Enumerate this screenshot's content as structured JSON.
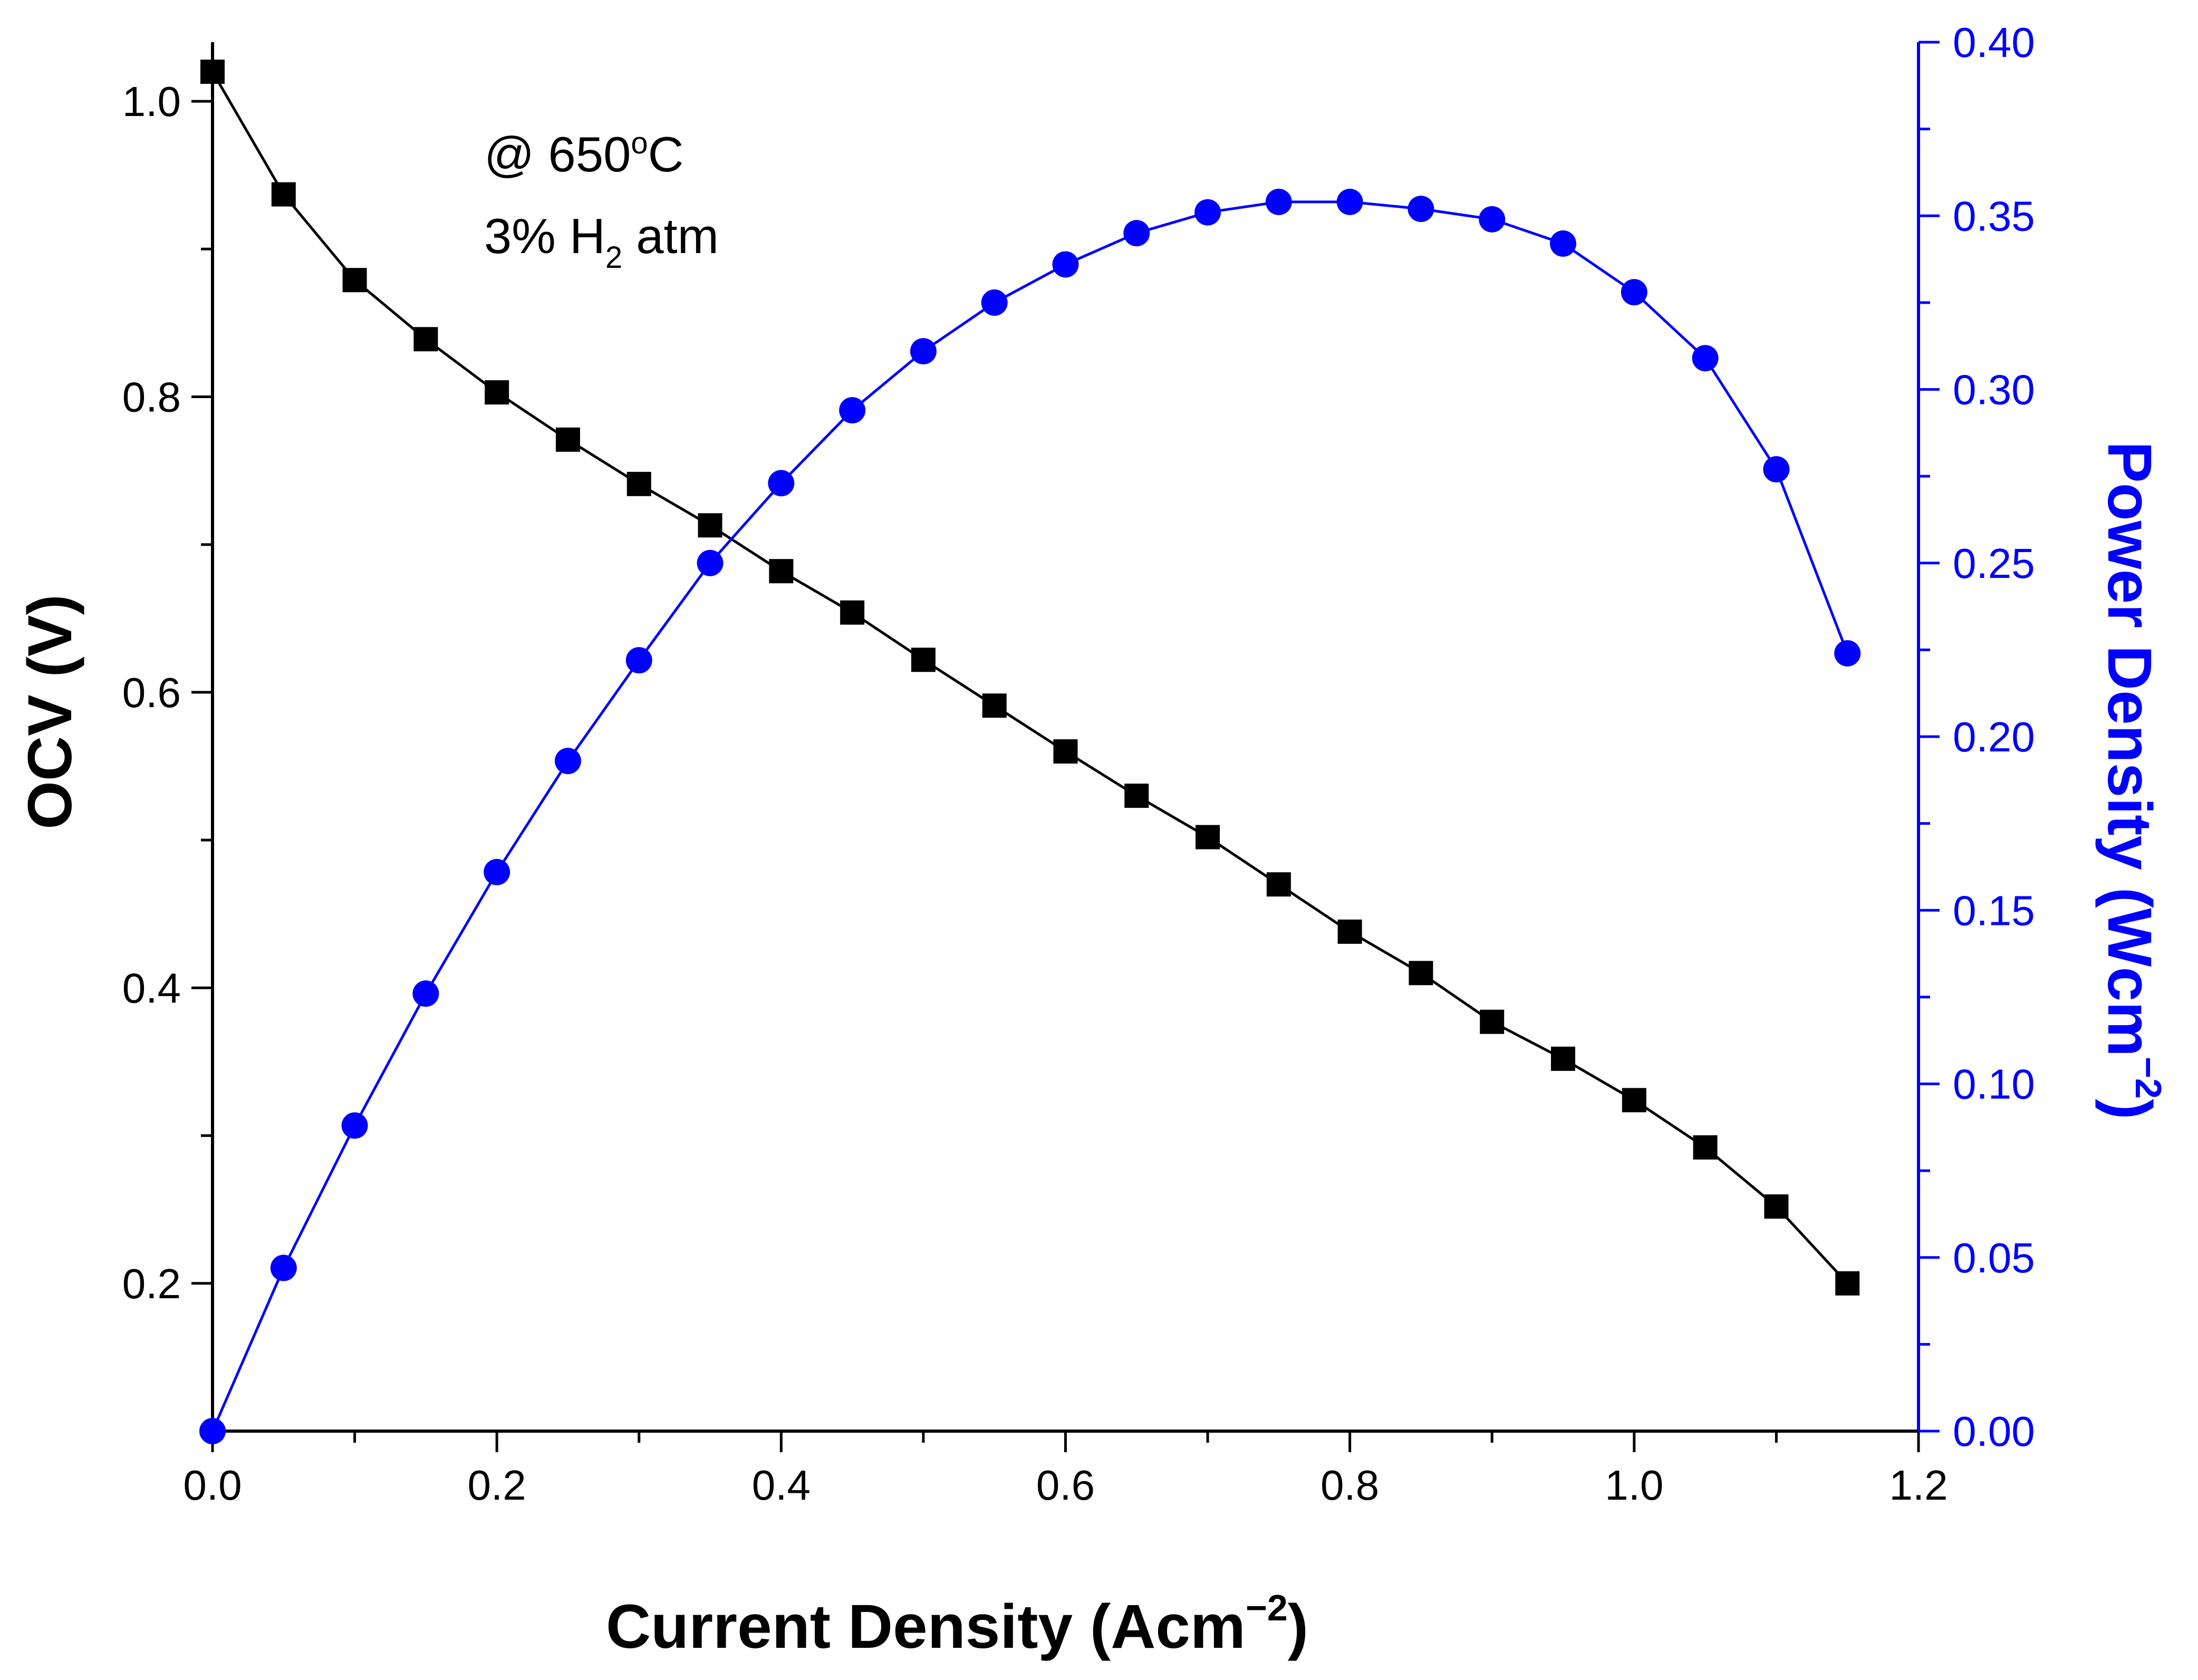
{
  "chart_data": {
    "type": "line",
    "title": "",
    "annotation": {
      "line1_prefix": "@ 650",
      "line1_sup": "o",
      "line1_suffix": "C",
      "line2_prefix": "3% H",
      "line2_sub": "2",
      "line2_suffix": " atm"
    },
    "x_axis": {
      "label_main": "Current Density (Acm",
      "label_sup": "−2",
      "label_close": ")",
      "range": [
        0.0,
        1.2
      ],
      "ticks": [
        0.0,
        0.2,
        0.4,
        0.6,
        0.8,
        1.0,
        1.2
      ],
      "tick_labels": [
        "0.0",
        "0.2",
        "0.4",
        "0.6",
        "0.8",
        "1.0",
        "1.2"
      ]
    },
    "y_axis_left": {
      "label": "OCV (V)",
      "range": [
        0.1,
        1.04
      ],
      "ticks": [
        0.2,
        0.4,
        0.6,
        0.8,
        1.0
      ],
      "tick_labels": [
        "0.2",
        "0.4",
        "0.6",
        "0.8",
        "1.0"
      ],
      "color": "#000000"
    },
    "y_axis_right": {
      "label_main": "Power Density (Wcm",
      "label_sup": "−2",
      "label_close": ")",
      "range": [
        0.0,
        0.4
      ],
      "ticks": [
        0.0,
        0.05,
        0.1,
        0.15,
        0.2,
        0.25,
        0.3,
        0.35,
        0.4
      ],
      "tick_labels": [
        "0.00",
        "0.05",
        "0.10",
        "0.15",
        "0.20",
        "0.25",
        "0.30",
        "0.35",
        "0.40"
      ],
      "color": "#0000ff"
    },
    "series": [
      {
        "name": "OCV",
        "axis": "left",
        "marker": "square",
        "color": "#000000",
        "x": [
          0.0,
          0.05,
          0.1,
          0.15,
          0.2,
          0.25,
          0.3,
          0.35,
          0.4,
          0.45,
          0.5,
          0.55,
          0.6,
          0.65,
          0.7,
          0.75,
          0.8,
          0.85,
          0.9,
          0.95,
          1.0,
          1.05,
          1.1,
          1.15
        ],
        "y": [
          1.02,
          0.937,
          0.879,
          0.839,
          0.803,
          0.771,
          0.741,
          0.713,
          0.682,
          0.654,
          0.622,
          0.591,
          0.56,
          0.53,
          0.502,
          0.47,
          0.438,
          0.41,
          0.377,
          0.352,
          0.324,
          0.292,
          0.252,
          0.2
        ]
      },
      {
        "name": "Power Density",
        "axis": "right",
        "marker": "circle",
        "color": "#0000ff",
        "x": [
          0.0,
          0.05,
          0.1,
          0.15,
          0.2,
          0.25,
          0.3,
          0.35,
          0.4,
          0.45,
          0.5,
          0.55,
          0.6,
          0.65,
          0.7,
          0.75,
          0.8,
          0.85,
          0.9,
          0.95,
          1.0,
          1.05,
          1.1,
          1.15
        ],
        "y": [
          0.0,
          0.047,
          0.088,
          0.126,
          0.161,
          0.193,
          0.222,
          0.25,
          0.273,
          0.294,
          0.311,
          0.325,
          0.336,
          0.345,
          0.351,
          0.354,
          0.354,
          0.352,
          0.349,
          0.342,
          0.328,
          0.309,
          0.277,
          0.224
        ]
      }
    ]
  }
}
